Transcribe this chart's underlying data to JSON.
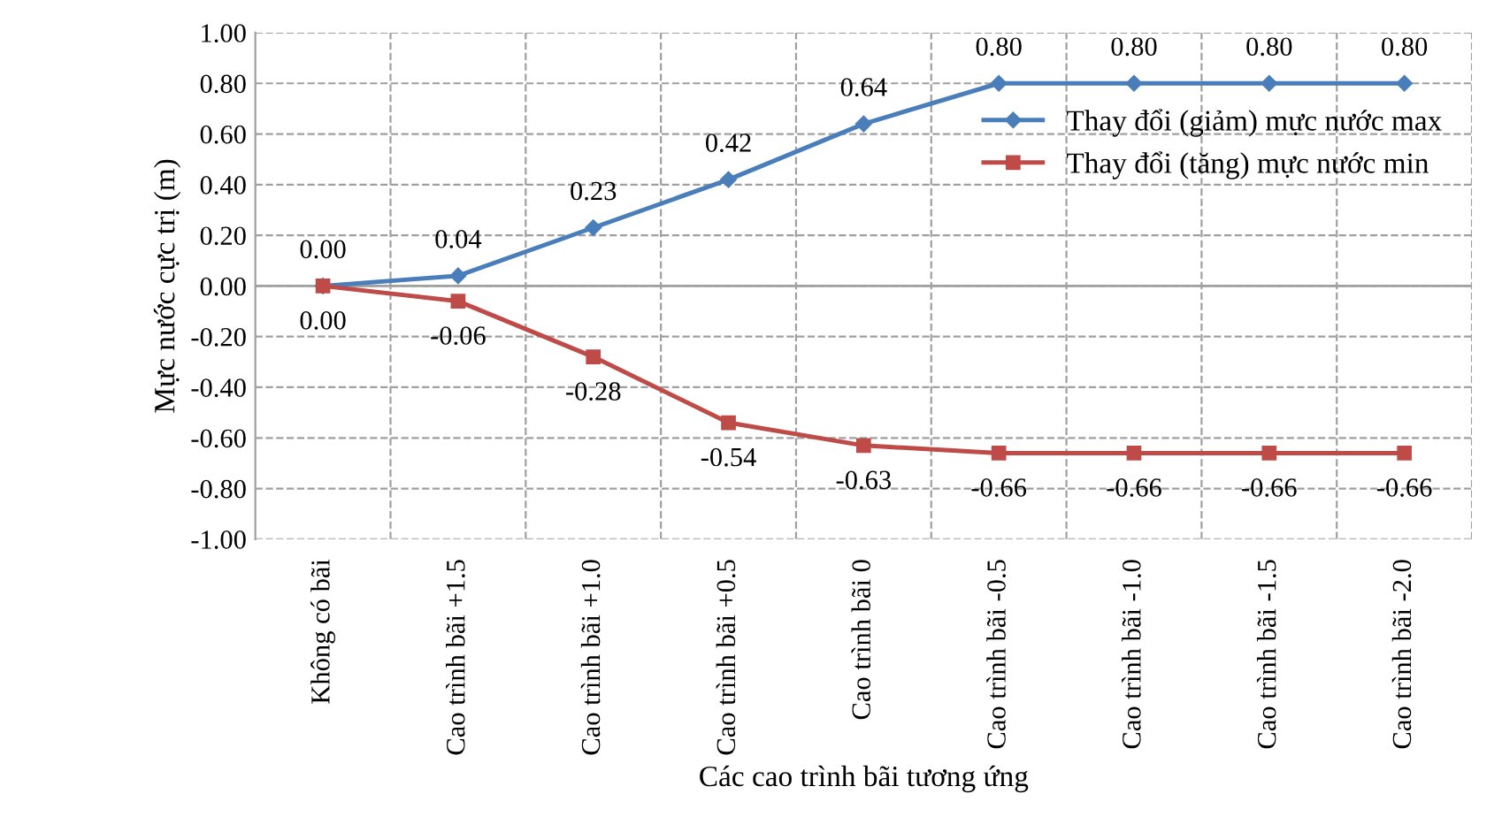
{
  "chart_data": {
    "type": "line",
    "xlabel": "Các cao trình bãi tương ứng",
    "ylabel": "Mực nước cực trị (m)",
    "categories": [
      "Không có bãi",
      "Cao trình bãi +1.5",
      "Cao trình bãi +1.0",
      "Cao trình bãi +0.5",
      "Cao trình bãi 0",
      "Cao trình bãi -0.5",
      "Cao trình bãi -1.0",
      "Cao trình bãi -1.5",
      "Cao trình bãi -2.0"
    ],
    "series": [
      {
        "name": "Thay đổi (giảm) mực nước max",
        "color": "#4a7ebb",
        "marker": "diamond",
        "values": [
          0.0,
          0.04,
          0.23,
          0.42,
          0.64,
          0.8,
          0.8,
          0.8,
          0.8
        ],
        "value_labels": [
          "0.00",
          "0.04",
          "0.23",
          "0.42",
          "0.64",
          "0.80",
          "0.80",
          "0.80",
          "0.80"
        ]
      },
      {
        "name": "Thay đổi (tăng) mực nước min",
        "color": "#be4b48",
        "marker": "square",
        "values": [
          0.0,
          -0.06,
          -0.28,
          -0.54,
          -0.63,
          -0.66,
          -0.66,
          -0.66,
          -0.66
        ],
        "value_labels": [
          "0.00",
          "-0.06",
          "-0.28",
          "-0.54",
          "-0.63",
          "-0.66",
          "-0.66",
          "-0.66",
          "-0.66"
        ]
      }
    ],
    "ylim": [
      -1.0,
      1.0
    ],
    "yticks": [
      {
        "value": -1.0,
        "label": "-1.00"
      },
      {
        "value": -0.8,
        "label": "-0.80"
      },
      {
        "value": -0.6,
        "label": "-0.60"
      },
      {
        "value": -0.4,
        "label": "-0.40"
      },
      {
        "value": -0.2,
        "label": "-0.20"
      },
      {
        "value": 0.0,
        "label": "0.00"
      },
      {
        "value": 0.2,
        "label": "0.20"
      },
      {
        "value": 0.4,
        "label": "0.40"
      },
      {
        "value": 0.6,
        "label": "0.60"
      },
      {
        "value": 0.8,
        "label": "0.80"
      },
      {
        "value": 1.0,
        "label": "1.00"
      }
    ],
    "grid": true,
    "legend": "right",
    "line_style": "solid"
  }
}
